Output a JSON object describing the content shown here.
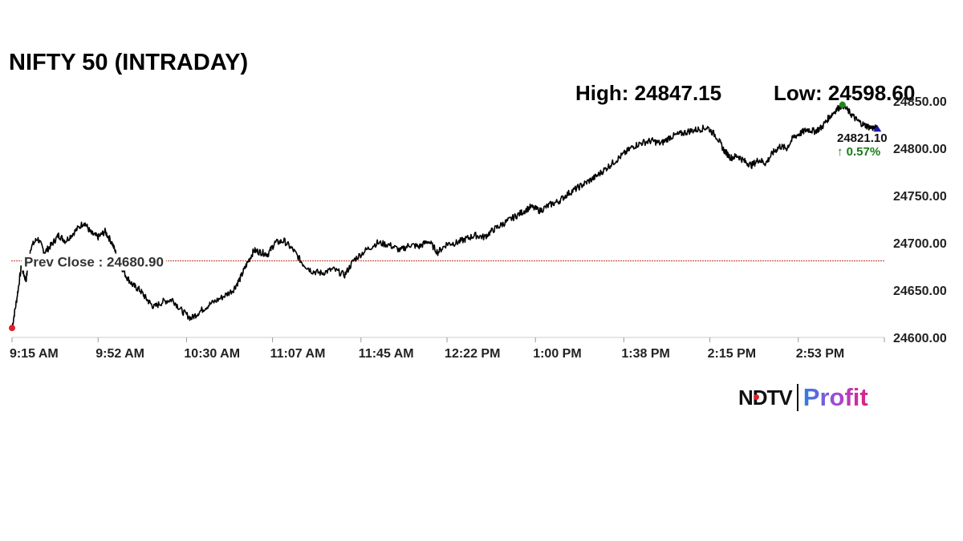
{
  "title": "NIFTY 50 (INTRADAY)",
  "stats": {
    "high": "High: 24847.15",
    "low": "Low: 24598.60"
  },
  "logo": {
    "ndtv": "NDTV",
    "profit": "Profit"
  },
  "chart_data": {
    "type": "line",
    "title": "NIFTY 50 (INTRADAY)",
    "x_ticks": [
      "9:15 AM",
      "9:52 AM",
      "10:30 AM",
      "11:07 AM",
      "11:45 AM",
      "12:22 PM",
      "1:00 PM",
      "1:38 PM",
      "2:15 PM",
      "2:53 PM"
    ],
    "y_ticks": [
      "24600.00",
      "24650.00",
      "24700.00",
      "24750.00",
      "24800.00",
      "24850.00"
    ],
    "ylim": [
      24600,
      24850
    ],
    "xlim": [
      "9:15 AM",
      "3:30 PM"
    ],
    "grid": false,
    "prev_close": {
      "label": "Prev Close : 24680.90",
      "value": 24680.9,
      "color": "#c0392b"
    },
    "last": {
      "value_label": "24821.10",
      "change_label": "↑ 0.57%",
      "value": 24821.1,
      "color": "#1a7a1a",
      "marker_color": "#1a1aaa"
    },
    "open_marker_color": "#e0202a",
    "high_marker_color": "#1a8a1a",
    "series": [
      {
        "color": "#000000",
        "time": [
          "9:15",
          "9:17",
          "9:19",
          "9:21",
          "9:23",
          "9:26",
          "9:29",
          "9:32",
          "9:35",
          "9:38",
          "9:42",
          "9:46",
          "9:49",
          "9:52",
          "9:55",
          "9:58",
          "10:01",
          "10:04",
          "10:07",
          "10:10",
          "10:13",
          "10:16",
          "10:20",
          "10:24",
          "10:28",
          "10:32",
          "10:36",
          "10:40",
          "10:45",
          "10:50",
          "10:53",
          "10:56",
          "10:59",
          "11:02",
          "11:05",
          "11:08",
          "11:12",
          "11:16",
          "11:20",
          "11:24",
          "11:28",
          "11:33",
          "11:38",
          "11:42",
          "11:47",
          "11:52",
          "11:57",
          "12:02",
          "12:06",
          "12:10",
          "12:14",
          "12:18",
          "12:22",
          "12:26",
          "12:30",
          "12:34",
          "12:38",
          "12:42",
          "12:46",
          "12:50",
          "12:54",
          "12:58",
          "13:02",
          "13:06",
          "13:10",
          "13:14",
          "13:18",
          "13:22",
          "13:26",
          "13:30",
          "13:34",
          "13:38",
          "13:42",
          "13:46",
          "13:50",
          "13:54",
          "13:58",
          "14:02",
          "14:06",
          "14:10",
          "14:14",
          "14:18",
          "14:21",
          "14:24",
          "14:27",
          "14:30",
          "14:33",
          "14:36",
          "14:39",
          "14:42",
          "14:45",
          "14:48",
          "14:51",
          "14:54",
          "14:57",
          "15:00",
          "15:03",
          "15:06",
          "15:09",
          "15:12",
          "15:15",
          "15:18",
          "15:21",
          "15:24",
          "15:27"
        ],
        "values": [
          24610,
          24640,
          24675,
          24660,
          24695,
          24705,
          24690,
          24698,
          24708,
          24702,
          24712,
          24722,
          24710,
          24706,
          24712,
          24700,
          24680,
          24665,
          24655,
          24650,
          24640,
          24632,
          24638,
          24640,
          24628,
          24620,
          24628,
          24635,
          24642,
          24650,
          24662,
          24678,
          24692,
          24690,
          24688,
          24700,
          24702,
          24692,
          24678,
          24670,
          24668,
          24672,
          24666,
          24682,
          24692,
          24700,
          24698,
          24692,
          24698,
          24696,
          24702,
          24690,
          24699,
          24700,
          24704,
          24708,
          24706,
          24714,
          24720,
          24726,
          24732,
          24738,
          24734,
          24740,
          24744,
          24752,
          24758,
          24764,
          24770,
          24778,
          24786,
          24794,
          24802,
          24806,
          24808,
          24805,
          24812,
          24815,
          24818,
          24820,
          24822,
          24812,
          24798,
          24790,
          24792,
          24786,
          24782,
          24788,
          24784,
          24795,
          24802,
          24800,
          24812,
          24816,
          24820,
          24818,
          24822,
          24832,
          24840,
          24846,
          24838,
          24830,
          24825,
          24822,
          24821
        ]
      }
    ]
  }
}
